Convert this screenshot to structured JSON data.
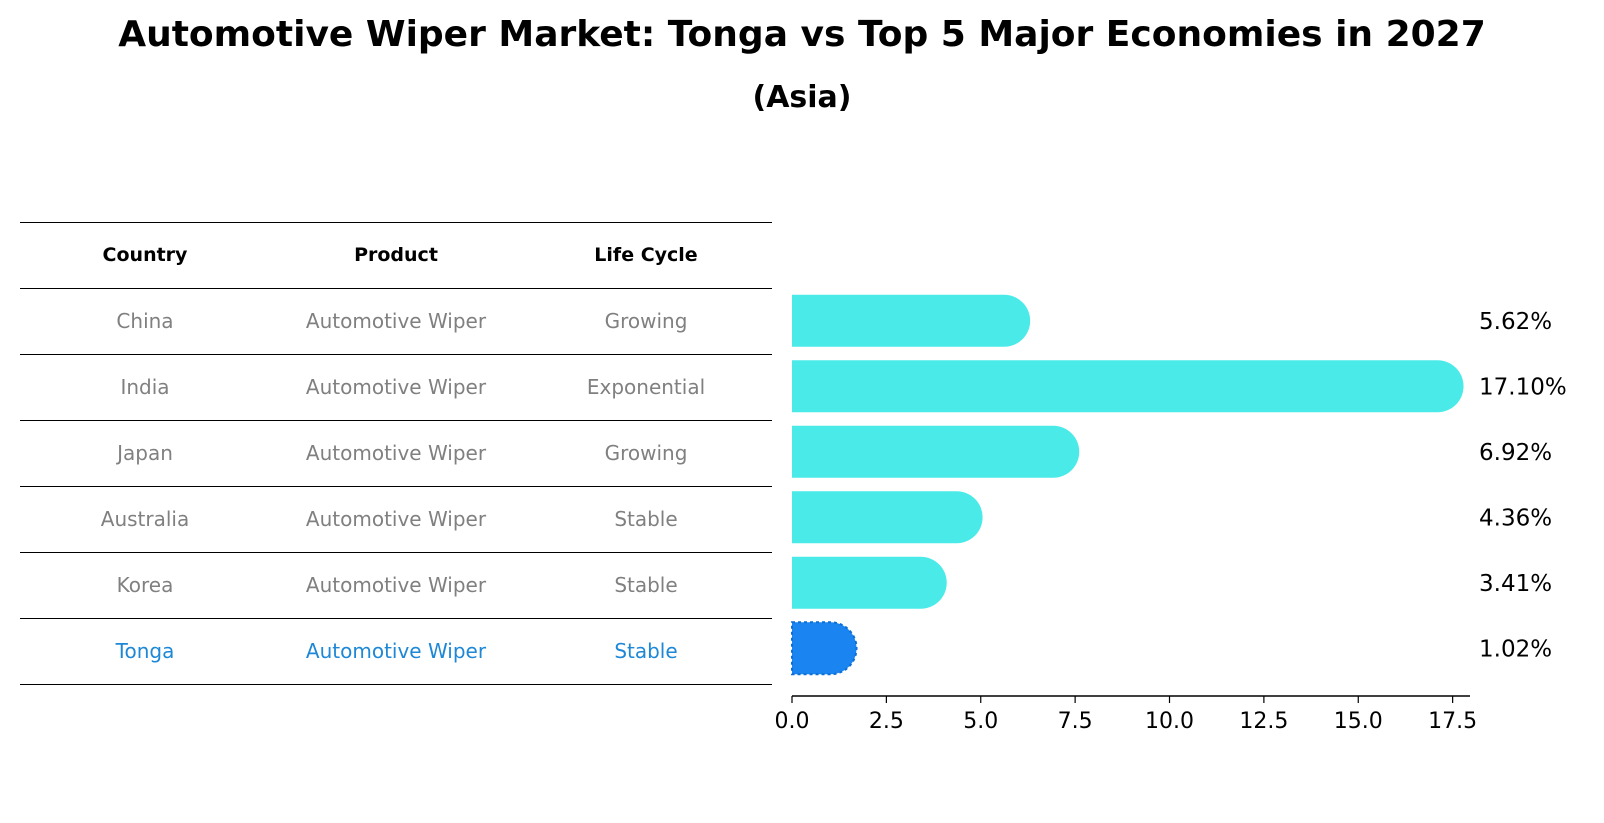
{
  "title": "Automotive Wiper Market: Tonga vs Top 5 Major Economies in 2027",
  "subtitle": "(Asia)",
  "colors": {
    "bar": "#4aeae8",
    "highlight": "#1a85f0",
    "table_text": "#808080",
    "table_highlight_text": "#1e88d6"
  },
  "table": {
    "headers": [
      "Country",
      "Product",
      "Life Cycle"
    ],
    "rows": [
      {
        "country": "China",
        "product": "Automotive Wiper",
        "life_cycle": "Growing",
        "highlight": false
      },
      {
        "country": "India",
        "product": "Automotive Wiper",
        "life_cycle": "Exponential",
        "highlight": false
      },
      {
        "country": "Japan",
        "product": "Automotive Wiper",
        "life_cycle": "Growing",
        "highlight": false
      },
      {
        "country": "Australia",
        "product": "Automotive Wiper",
        "life_cycle": "Stable",
        "highlight": false
      },
      {
        "country": "Korea",
        "product": "Automotive Wiper",
        "life_cycle": "Stable",
        "highlight": false
      },
      {
        "country": "Tonga",
        "product": "Automotive Wiper",
        "life_cycle": "Stable",
        "highlight": true
      }
    ]
  },
  "chart_data": {
    "type": "bar",
    "orientation": "horizontal",
    "categories": [
      "China",
      "India",
      "Japan",
      "Australia",
      "Korea",
      "Tonga"
    ],
    "values": [
      5.62,
      17.1,
      6.92,
      4.36,
      3.41,
      1.02
    ],
    "value_labels": [
      "5.62%",
      "17.10%",
      "6.92%",
      "4.36%",
      "3.41%",
      "1.02%"
    ],
    "highlight_category": "Tonga",
    "xlim": [
      0,
      17.96
    ],
    "xticks": [
      0.0,
      2.5,
      5.0,
      7.5,
      10.0,
      12.5,
      15.0,
      17.5
    ],
    "xtick_labels": [
      "0.0",
      "2.5",
      "5.0",
      "7.5",
      "10.0",
      "12.5",
      "15.0",
      "17.5"
    ],
    "xlabel": "",
    "ylabel": "",
    "grid": false
  }
}
